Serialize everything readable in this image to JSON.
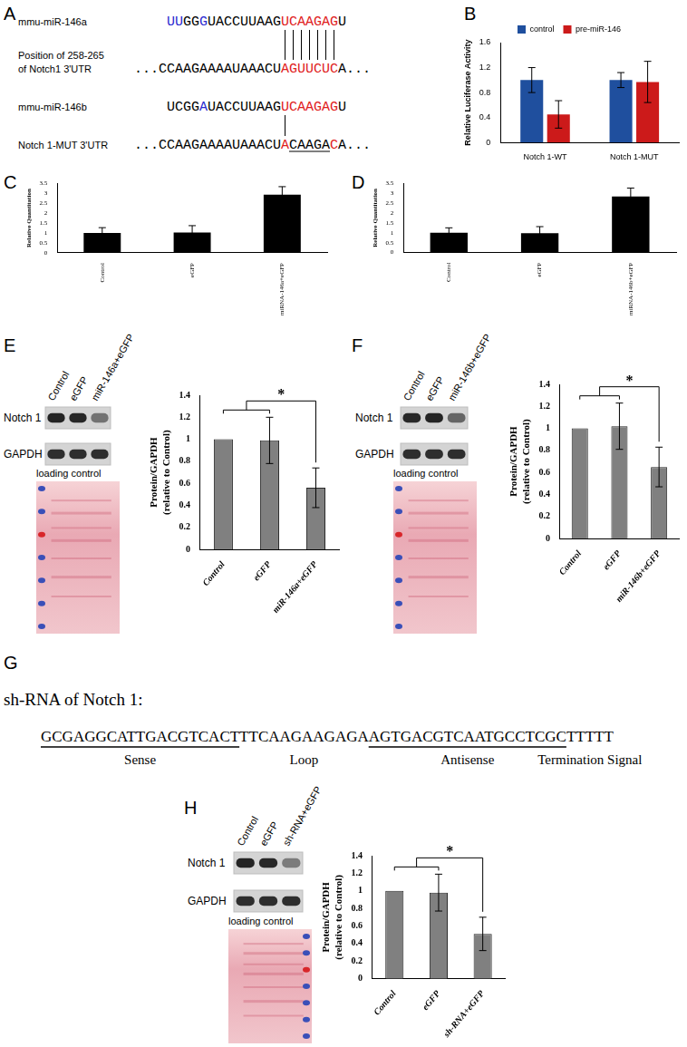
{
  "alignment": {
    "label": "A",
    "rows": [
      {
        "name": [
          "mmu-miR-146a"
        ],
        "before": [
          {
            "text": "UU",
            "color": "#2a2ad0"
          },
          {
            "text": "GG",
            "color": "#000000"
          },
          {
            "text": "G",
            "color": "#2a2ad0"
          },
          {
            "text": "UACCUUAAG",
            "color": "#000000"
          }
        ],
        "seed": [
          {
            "text": "UCAAGAG",
            "color": "#e0201c"
          }
        ],
        "after": [
          {
            "text": "U",
            "color": "#000000"
          }
        ]
      },
      {
        "name": [
          "Position of 258-265",
          "of Notch1 3'UTR"
        ],
        "before": [
          {
            "text": "...CCAAGAAAAUAAACU",
            "color": "#000000"
          }
        ],
        "seed": [
          {
            "text": "AGUUCUC",
            "color": "#e0201c"
          }
        ],
        "after": [
          {
            "text": "A...",
            "color": "#000000"
          }
        ]
      },
      {
        "name": [
          "mmu-miR-146b"
        ],
        "before": [
          {
            "text": "UCGG",
            "color": "#000000"
          },
          {
            "text": "A",
            "color": "#2a2ad0"
          },
          {
            "text": "UACCUUAAG",
            "color": "#000000"
          }
        ],
        "seed": [
          {
            "text": "UCAAGAG",
            "color": "#e0201c"
          }
        ],
        "after": [
          {
            "text": "U",
            "color": "#000000"
          }
        ]
      },
      {
        "name": [
          "Notch 1-MUT 3'UTR"
        ],
        "before": [
          {
            "text": "...CCAAGAAAAUAAACU",
            "color": "#000000"
          }
        ],
        "seed": [
          {
            "text": "A",
            "color": "#e0201c"
          },
          {
            "text": "CAAGA",
            "color": "#000000",
            "underline": true
          },
          {
            "text": "C",
            "color": "#e0201c"
          }
        ],
        "after": [
          {
            "text": "A...",
            "color": "#000000"
          }
        ]
      }
    ]
  },
  "chart_data": [
    {
      "type": "bar",
      "label": "B",
      "y_label": "Relative Luciferase Activity",
      "categories": [
        "Notch 1-WT",
        "Notch 1-MUT"
      ],
      "series": [
        {
          "name": "control",
          "color": "#1f4f9e",
          "values": [
            1.0,
            1.0
          ],
          "errors": [
            0.2,
            0.12
          ]
        },
        {
          "name": "pre-miR-146",
          "color": "#cc1a1a",
          "values": [
            0.45,
            0.97
          ],
          "errors": [
            0.22,
            0.33
          ]
        }
      ],
      "ylim": [
        0,
        1.6
      ],
      "yticks": [
        0,
        0.4,
        0.8,
        1.2,
        1.6
      ],
      "grid": false,
      "legend": "top"
    },
    {
      "type": "bar",
      "label": "C",
      "y_label": "Relative Quantitation",
      "categories": [
        "Control",
        "eGFP",
        "miRNA-146a+eGFP"
      ],
      "values": [
        1.0,
        1.02,
        2.93
      ],
      "errors": [
        0.27,
        0.35,
        0.4
      ],
      "color": "#000000",
      "ylim": [
        0,
        3.5
      ],
      "yticks": [
        0,
        0.5,
        1,
        1.5,
        2,
        2.5,
        3,
        3.5
      ],
      "grid": false
    },
    {
      "type": "bar",
      "label": "D",
      "y_label": "Relative Quantitation",
      "categories": [
        "Control",
        "eGFP",
        "miRNA-146b+eGFP"
      ],
      "values": [
        1.0,
        0.98,
        2.83
      ],
      "errors": [
        0.25,
        0.33,
        0.43
      ],
      "color": "#000000",
      "ylim": [
        0,
        3.5
      ],
      "yticks": [
        0,
        0.5,
        1,
        1.5,
        2,
        2.5,
        3,
        3.5
      ],
      "grid": false
    },
    {
      "type": "bar",
      "y_label": [
        "Protein/GAPDH",
        "(relative to Control)"
      ],
      "categories": [
        "Control",
        "eGFP",
        "miR-146a+eGFP"
      ],
      "values": [
        1.0,
        0.99,
        0.56
      ],
      "errors": [
        0,
        0.21,
        0.18
      ],
      "color": "#808080",
      "ylim": [
        0,
        1.4
      ],
      "yticks": [
        0,
        0.2,
        0.4,
        0.6,
        0.8,
        1,
        1.2,
        1.4
      ],
      "grid": false,
      "significance": "*"
    },
    {
      "type": "bar",
      "y_label": [
        "Protein/GAPDH",
        "(relative to Control)"
      ],
      "categories": [
        "Control",
        "eGFP",
        "miR-146b+eGFP"
      ],
      "values": [
        1.0,
        1.02,
        0.65
      ],
      "errors": [
        0,
        0.21,
        0.18
      ],
      "color": "#808080",
      "ylim": [
        0,
        1.4
      ],
      "yticks": [
        0,
        0.2,
        0.4,
        0.6,
        0.8,
        1,
        1.2,
        1.4
      ],
      "grid": false,
      "significance": "*"
    },
    {
      "type": "bar",
      "y_label": [
        "Protein/GAPDH",
        "(relative to Control)"
      ],
      "categories": [
        "Control",
        "eGFP",
        "sh-RNA+eGFP"
      ],
      "values": [
        1.0,
        0.98,
        0.51
      ],
      "errors": [
        0,
        0.21,
        0.19
      ],
      "color": "#808080",
      "ylim": [
        0,
        1.4
      ],
      "yticks": [
        0,
        0.2,
        0.4,
        0.6,
        0.8,
        1,
        1.2,
        1.4
      ],
      "grid": false,
      "significance": "*"
    }
  ],
  "blots": [
    {
      "label": "E",
      "lanes": [
        "Control",
        "eGFP",
        "miR-146a+eGFP"
      ],
      "rows": [
        "Notch 1",
        "GAPDH"
      ],
      "stain_caption": "loading control"
    },
    {
      "label": "F",
      "lanes": [
        "Control",
        "eGFP",
        "miR-146b+eGFP"
      ],
      "rows": [
        "Notch 1",
        "GAPDH"
      ],
      "stain_caption": "loading control"
    },
    {
      "label": "H",
      "lanes": [
        "Control",
        "eGFP",
        "sh-RNA+eGFP"
      ],
      "rows": [
        "Notch 1",
        "GAPDH"
      ],
      "stain_caption": "loading control"
    }
  ],
  "shrna": {
    "label": "G",
    "title": "sh-RNA of Notch 1:",
    "parts": [
      {
        "text": "GCGAGGCATTGACGTCACT",
        "name": "Sense",
        "underline": true
      },
      {
        "text": "TTCAAGAAGAGA",
        "name": "Loop"
      },
      {
        "text": "AGTGACGTCAATGCCTCGC",
        "name": "Antisense",
        "underline": true
      },
      {
        "text": "TTTTT",
        "name": "Termination Signal"
      }
    ]
  }
}
